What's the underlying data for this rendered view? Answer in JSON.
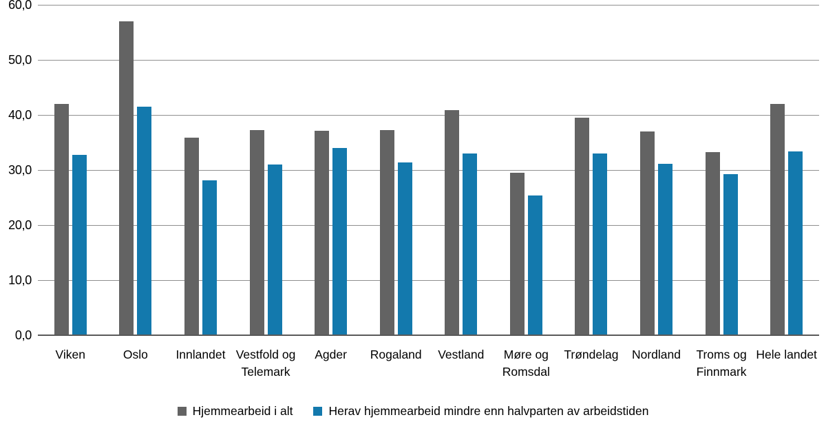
{
  "chart_data": {
    "type": "bar",
    "title": "",
    "xlabel": "",
    "ylabel": "",
    "ylim": [
      0,
      60
    ],
    "grid": true,
    "legend_position": "bottom",
    "y_ticks": [
      {
        "value": 0,
        "label": "0,0"
      },
      {
        "value": 10,
        "label": "10,0"
      },
      {
        "value": 20,
        "label": "20,0"
      },
      {
        "value": 30,
        "label": "30,0"
      },
      {
        "value": 40,
        "label": "40,0"
      },
      {
        "value": 50,
        "label": "50,0"
      },
      {
        "value": 60,
        "label": "60,0"
      }
    ],
    "categories": [
      "Viken",
      "Oslo",
      "Innlandet",
      "Vestfold og Telemark",
      "Agder",
      "Rogaland",
      "Vestland",
      "Møre og Romsdal",
      "Trøndelag",
      "Nordland",
      "Troms og Finnmark",
      "Hele landet"
    ],
    "series": [
      {
        "name": "Hjemmearbeid i alt",
        "color": "#636363",
        "values": [
          42.0,
          57.0,
          35.9,
          37.3,
          37.1,
          37.2,
          40.9,
          29.5,
          39.5,
          37.0,
          33.3,
          42.0
        ]
      },
      {
        "name": "Herav hjemmearbeid mindre enn halvparten av arbeidstiden",
        "color": "#1379ad",
        "values": [
          32.8,
          41.5,
          28.1,
          31.0,
          34.0,
          31.4,
          33.0,
          25.4,
          33.0,
          31.1,
          29.2,
          33.4
        ]
      }
    ]
  },
  "colors": {
    "background": "#ffffff",
    "gridline": "#8f8f8f",
    "baseline": "#595959",
    "text": "#000000"
  }
}
